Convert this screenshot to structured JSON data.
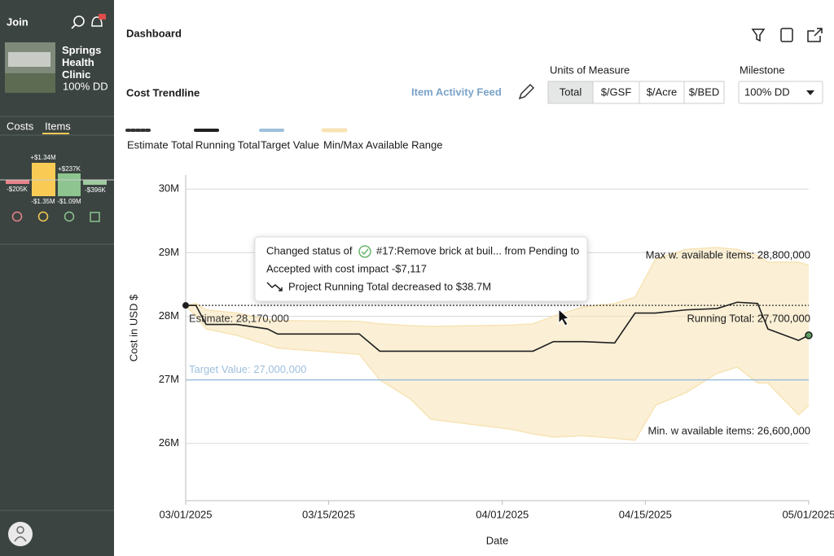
{
  "sidebar": {
    "brand": "Join",
    "project": {
      "name": "Springs Health Clinic",
      "milestone": "100% DD"
    },
    "tabs": [
      "Costs",
      "Items"
    ],
    "items_summary": [
      [
        "-$205K"
      ],
      [
        "+$1.34M",
        "-$1.35M"
      ],
      [
        "+$237K",
        "-$1.09M"
      ],
      [
        "-$396K"
      ]
    ]
  },
  "header": {
    "title": "Dashboard"
  },
  "controls": {
    "section_title": "Cost Trendline",
    "activity_link": "Item Activity Feed",
    "units_label": "Units of Measure",
    "units": [
      "Total",
      "$/GSF",
      "$/Acre",
      "$/BED"
    ],
    "milestone_label": "Milestone",
    "milestone": "100% DD"
  },
  "tooltip": {
    "prefix": "Changed status of",
    "item": "#17:Remove brick at buil... from Pending to",
    "impact": "Accepted with cost impact -$7,117",
    "result": "Project Running Total decreased to $38.7M"
  },
  "chart_data": {
    "type": "line",
    "y_label": "Cost in USD $",
    "x_label": "Date",
    "x": [
      "03/01/2025",
      "03/02/2025",
      "03/03/2025",
      "03/06/2025",
      "03/09/2025",
      "03/10/2025",
      "03/18/2025",
      "03/20/2025",
      "03/23/2025",
      "03/25/2025",
      "04/02/2025",
      "04/04/2025",
      "04/06/2025",
      "04/09/2025",
      "04/12/2025",
      "04/14/2025",
      "04/16/2025",
      "04/19/2025",
      "04/22/2025",
      "04/24/2025",
      "04/26/2025",
      "04/27/2025",
      "04/30/2025",
      "05/01/2025"
    ],
    "xlim": [
      "03/01/2025",
      "05/01/2025"
    ],
    "xticks": [
      "03/01/2025",
      "03/15/2025",
      "04/01/2025",
      "04/15/2025",
      "05/01/2025"
    ],
    "ylim": [
      25100000,
      30220000
    ],
    "yticks": [
      {
        "value": 26000000,
        "label": "26M"
      },
      {
        "value": 27000000,
        "label": "27M"
      },
      {
        "value": 28000000,
        "label": "28M"
      },
      {
        "value": 29000000,
        "label": "29M"
      },
      {
        "value": 30000000,
        "label": "30M"
      }
    ],
    "grid": true,
    "series": [
      {
        "name": "Running Total",
        "color": "#1f1f1f",
        "end_label": "Running Total: 27,700,000",
        "values": [
          28170000,
          28170000,
          27870000,
          27870000,
          27800000,
          27720000,
          27720000,
          27450000,
          27450000,
          27450000,
          27450000,
          27450000,
          27600000,
          27600000,
          27580000,
          28050000,
          28050000,
          28100000,
          28120000,
          28220000,
          28200000,
          27800000,
          27620000,
          27700000
        ]
      }
    ],
    "range": {
      "name": "Min/Max Available Range",
      "color": "#f7e3b4",
      "upper_label": "Max w. available items: 28,800,000",
      "lower_label": "Min. w available items: 26,600,000",
      "upper": [
        28170000,
        28200000,
        28100000,
        28050000,
        27950000,
        27930000,
        27920000,
        27880000,
        27850000,
        27840000,
        27860000,
        27880000,
        28000000,
        28150000,
        28200000,
        28300000,
        28900000,
        29050000,
        29080000,
        29050000,
        28950000,
        28850000,
        28850000,
        28800000
      ],
      "lower": [
        28170000,
        28000000,
        27800000,
        27700000,
        27550000,
        27500000,
        27400000,
        27000000,
        26700000,
        26380000,
        26220000,
        26150000,
        26100000,
        26120000,
        26080000,
        26050000,
        26600000,
        26800000,
        27100000,
        27200000,
        26950000,
        26950000,
        26450000,
        26600000
      ]
    },
    "reference_lines": [
      {
        "name": "Estimate Total",
        "value": 28170000,
        "label": "Estimate: 28,170,000",
        "color": "#333333",
        "style": "dotted"
      },
      {
        "name": "Target Value",
        "value": 27000000,
        "label": "Target Value: 27,000,000",
        "color": "#9dbfdc",
        "style": "solid"
      }
    ]
  }
}
